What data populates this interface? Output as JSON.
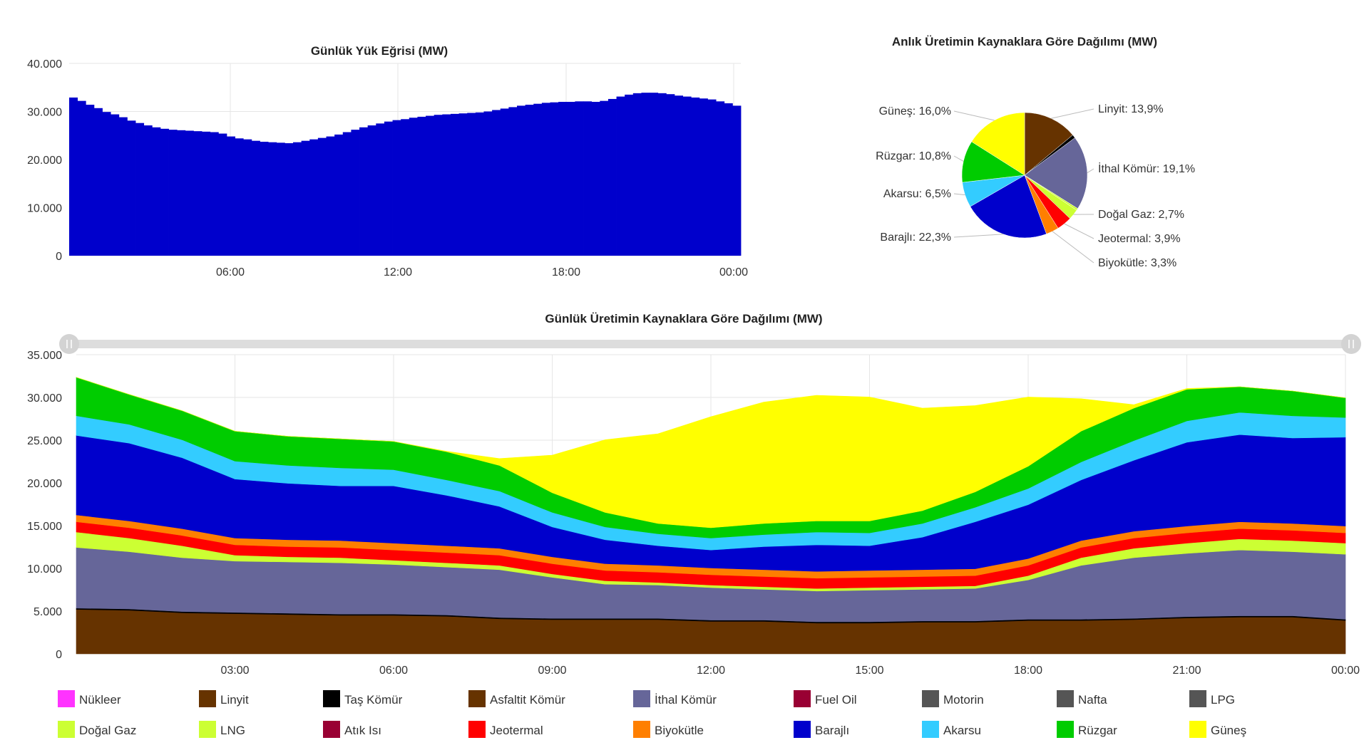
{
  "chart_data": [
    {
      "type": "bar",
      "title": "Günlük Yük Eğrisi (MW)",
      "ylim": [
        0,
        40000
      ],
      "yticks": [
        "0",
        "10.000",
        "20.000",
        "30.000",
        "40.000"
      ],
      "xticks": [
        "06:00",
        "12:00",
        "18:00",
        "00:00"
      ],
      "bar_color": "#0000CC",
      "values": [
        32900,
        32200,
        31400,
        30700,
        29900,
        29400,
        28800,
        28100,
        27600,
        27100,
        26700,
        26400,
        26200,
        26100,
        26000,
        25900,
        25800,
        25700,
        25400,
        24800,
        24400,
        24200,
        23900,
        23700,
        23600,
        23500,
        23400,
        23600,
        23900,
        24200,
        24500,
        24800,
        25200,
        25700,
        26200,
        26700,
        27100,
        27500,
        27900,
        28200,
        28400,
        28700,
        28900,
        29100,
        29300,
        29400,
        29500,
        29600,
        29700,
        29800,
        30000,
        30300,
        30600,
        30900,
        31200,
        31400,
        31600,
        31800,
        31900,
        32000,
        32000,
        32100,
        32100,
        32000,
        32200,
        32600,
        33100,
        33500,
        33800,
        33900,
        33900,
        33800,
        33600,
        33300,
        33100,
        32900,
        32700,
        32500,
        32100,
        31700,
        31200
      ]
    },
    {
      "type": "pie",
      "title": "Anlık Üretimin Kaynaklara Göre Dağılımı (MW)",
      "slices": [
        {
          "name": "Linyit",
          "value": 13.9,
          "label": "Linyit: 13,9%",
          "color": "#663300"
        },
        {
          "name": "Taş Kömür",
          "value": 0.9,
          "label": "",
          "color": "#000000"
        },
        {
          "name": "İthal Kömür",
          "value": 19.1,
          "label": "İthal Kömür: 19,1%",
          "color": "#666699"
        },
        {
          "name": "LNG",
          "value": 0.5,
          "label": "",
          "color": "#CCFF33"
        },
        {
          "name": "Doğal Gaz",
          "value": 2.7,
          "label": "Doğal Gaz: 2,7%",
          "color": "#CCFF33"
        },
        {
          "name": "Jeotermal",
          "value": 3.9,
          "label": "Jeotermal: 3,9%",
          "color": "#FF0000"
        },
        {
          "name": "Biyokütle",
          "value": 3.3,
          "label": "Biyokütle: 3,3%",
          "color": "#FF7F00"
        },
        {
          "name": "Barajlı",
          "value": 22.3,
          "label": "Barajlı: 22,3%",
          "color": "#0000CC"
        },
        {
          "name": "Akarsu",
          "value": 6.5,
          "label": "Akarsu: 6,5%",
          "color": "#33CCFF"
        },
        {
          "name": "Rüzgar",
          "value": 10.8,
          "label": "Rüzgar: 10,8%",
          "color": "#00CC00"
        },
        {
          "name": "Güneş",
          "value": 16.0,
          "label": "Güneş: 16,0%",
          "color": "#FFFF00"
        }
      ]
    },
    {
      "type": "area",
      "stacked": true,
      "title": "Günlük Üretimin Kaynaklara Göre Dağılımı (MW)",
      "ylim": [
        0,
        35000
      ],
      "yticks": [
        "0",
        "5.000",
        "10.000",
        "15.000",
        "20.000",
        "25.000",
        "30.000",
        "35.000"
      ],
      "xticks": [
        "03:00",
        "06:00",
        "09:00",
        "12:00",
        "15:00",
        "18:00",
        "21:00",
        "00:00"
      ],
      "x_hours": [
        0,
        1,
        2,
        3,
        4,
        5,
        6,
        7,
        8,
        9,
        10,
        11,
        12,
        13,
        14,
        15,
        16,
        17,
        18,
        19,
        20,
        21,
        22,
        23,
        24
      ],
      "series": [
        {
          "name": "Linyit",
          "color": "#663300",
          "values": [
            5200,
            5100,
            4800,
            4700,
            4600,
            4500,
            4500,
            4400,
            4100,
            4000,
            4000,
            4000,
            3800,
            3800,
            3600,
            3600,
            3700,
            3700,
            3900,
            3900,
            4000,
            4200,
            4300,
            4300,
            3900
          ]
        },
        {
          "name": "Taş Kömür",
          "color": "#000000",
          "values": [
            150,
            150,
            150,
            150,
            150,
            150,
            150,
            150,
            150,
            150,
            150,
            150,
            150,
            150,
            150,
            150,
            150,
            150,
            150,
            150,
            150,
            150,
            150,
            150,
            150
          ]
        },
        {
          "name": "İthal Kömür",
          "color": "#666699",
          "values": [
            7100,
            6700,
            6300,
            6000,
            6000,
            6000,
            5800,
            5600,
            5600,
            4800,
            4000,
            3900,
            3800,
            3600,
            3600,
            3700,
            3700,
            3800,
            4600,
            6300,
            7100,
            7400,
            7700,
            7500,
            7600
          ]
        },
        {
          "name": "Doğal Gaz",
          "color": "#CCFF33",
          "values": [
            1800,
            1600,
            1400,
            700,
            600,
            600,
            500,
            500,
            500,
            400,
            400,
            300,
            300,
            300,
            300,
            300,
            300,
            300,
            500,
            900,
            1100,
            1200,
            1300,
            1300,
            1300
          ]
        },
        {
          "name": "Jeotermal",
          "color": "#FF0000",
          "values": [
            1200,
            1200,
            1200,
            1200,
            1200,
            1200,
            1200,
            1200,
            1200,
            1200,
            1200,
            1200,
            1200,
            1200,
            1200,
            1200,
            1200,
            1200,
            1200,
            1200,
            1200,
            1200,
            1200,
            1200,
            1200
          ]
        },
        {
          "name": "Biyokütle",
          "color": "#FF7F00",
          "values": [
            800,
            800,
            800,
            800,
            800,
            800,
            800,
            800,
            800,
            800,
            800,
            800,
            800,
            800,
            800,
            800,
            800,
            800,
            800,
            800,
            800,
            800,
            800,
            800,
            800
          ]
        },
        {
          "name": "Barajlı",
          "color": "#0000CC",
          "values": [
            9300,
            9100,
            8300,
            6900,
            6600,
            6400,
            6700,
            5900,
            4900,
            3500,
            2800,
            2300,
            2100,
            2700,
            3100,
            2900,
            3800,
            5500,
            6300,
            7100,
            8300,
            9800,
            10200,
            10000,
            10400
          ]
        },
        {
          "name": "Akarsu",
          "color": "#33CCFF",
          "values": [
            2300,
            2200,
            2100,
            2100,
            2100,
            2100,
            1900,
            1800,
            1800,
            1700,
            1500,
            1400,
            1400,
            1400,
            1500,
            1500,
            1600,
            1700,
            1900,
            2100,
            2300,
            2500,
            2600,
            2600,
            2300
          ]
        },
        {
          "name": "Rüzgar",
          "color": "#00CC00",
          "values": [
            4500,
            3500,
            3400,
            3500,
            3400,
            3400,
            3300,
            3300,
            3000,
            2300,
            1700,
            1200,
            1200,
            1300,
            1300,
            1400,
            1500,
            1800,
            2600,
            3600,
            3800,
            3700,
            3000,
            2900,
            2300
          ]
        },
        {
          "name": "Güneş",
          "color": "#FFFF00",
          "values": [
            0,
            0,
            0,
            0,
            0,
            0,
            0,
            50,
            800,
            4400,
            8500,
            10500,
            13000,
            14200,
            14700,
            14500,
            12000,
            10100,
            8100,
            3800,
            400,
            100,
            0,
            0,
            0
          ]
        }
      ]
    }
  ],
  "legend": [
    {
      "label": "Nükleer",
      "color": "#FF33FF"
    },
    {
      "label": "Linyit",
      "color": "#663300"
    },
    {
      "label": "Taş Kömür",
      "color": "#000000"
    },
    {
      "label": "Asfaltit Kömür",
      "color": "#663300"
    },
    {
      "label": "İthal Kömür",
      "color": "#666699"
    },
    {
      "label": "Fuel Oil",
      "color": "#990033"
    },
    {
      "label": "Motorin",
      "color": "#555555"
    },
    {
      "label": "Nafta",
      "color": "#555555"
    },
    {
      "label": "LPG",
      "color": "#555555"
    },
    {
      "label": "Doğal Gaz",
      "color": "#CCFF33"
    },
    {
      "label": "LNG",
      "color": "#CCFF33"
    },
    {
      "label": "Atık Isı",
      "color": "#990033"
    },
    {
      "label": "Jeotermal",
      "color": "#FF0000"
    },
    {
      "label": "Biyokütle",
      "color": "#FF7F00"
    },
    {
      "label": "Barajlı",
      "color": "#0000CC"
    },
    {
      "label": "Akarsu",
      "color": "#33CCFF"
    },
    {
      "label": "Rüzgar",
      "color": "#00CC00"
    },
    {
      "label": "Güneş",
      "color": "#FFFF00"
    }
  ]
}
